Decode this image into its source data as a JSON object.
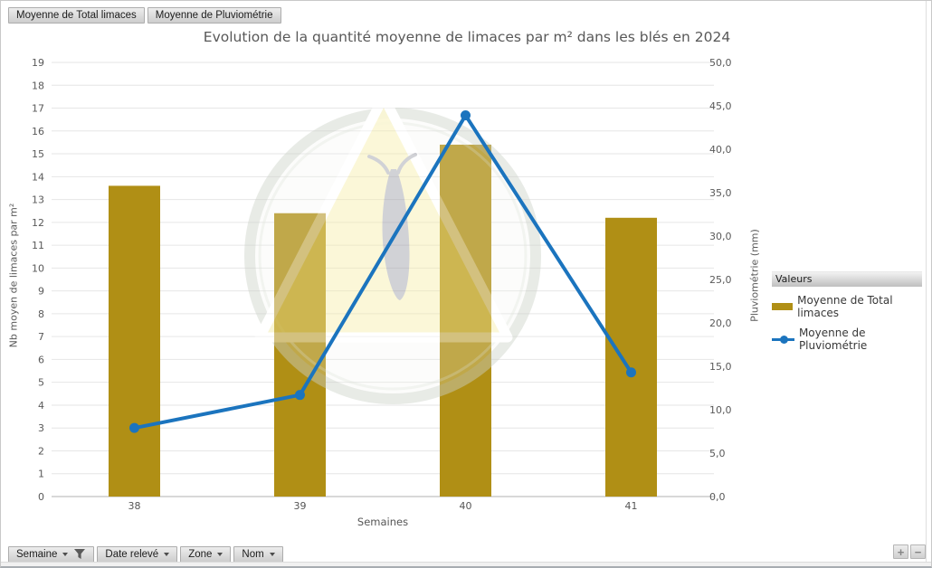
{
  "window": {
    "top_field_buttons": [
      {
        "label": "Moyenne de Total limaces"
      },
      {
        "label": "Moyenne de Pluviométrie"
      }
    ],
    "bottom_field_buttons": [
      {
        "label": "Semaine",
        "has_filter": true
      },
      {
        "label": "Date relevé"
      },
      {
        "label": "Zone"
      },
      {
        "label": "Nom"
      }
    ],
    "zoom_controls": {
      "plus": "+",
      "minus": "−"
    }
  },
  "chart_data": {
    "type": "combo-bar-line",
    "title": "Evolution de la quantité moyenne de limaces par m² dans les blés en 2024",
    "categories": [
      "38",
      "39",
      "40",
      "41"
    ],
    "xlabel": "Semaines",
    "left_axis": {
      "label": "Nb moyen de limaces par m²",
      "min": 0,
      "max": 19,
      "step": 1
    },
    "right_axis": {
      "label": "Pluviométrie (mm)",
      "min": 0,
      "max": 50,
      "step": 5,
      "decimal_comma": true
    },
    "series": [
      {
        "name": "Moyenne de Total limaces",
        "type": "bar",
        "axis": "left",
        "color": "#B08F15",
        "values": [
          13.6,
          12.4,
          15.4,
          12.2
        ]
      },
      {
        "name": "Moyenne de Pluviométrie",
        "type": "line",
        "axis": "right",
        "color": "#1B74BE",
        "values": [
          7.9,
          11.7,
          43.9,
          14.3
        ]
      }
    ],
    "legend": {
      "header": "Valeurs",
      "position": "right"
    },
    "grid": true
  }
}
